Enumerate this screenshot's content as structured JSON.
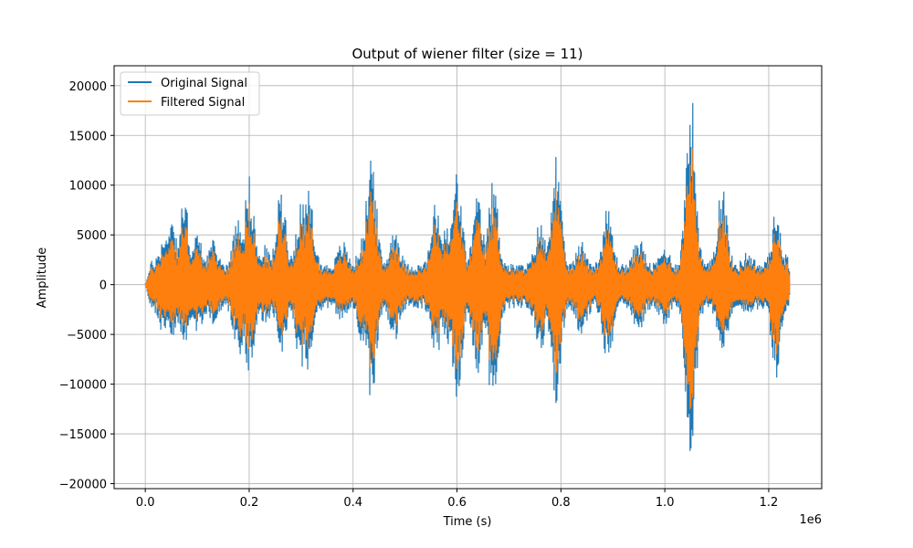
{
  "chart_data": {
    "type": "line",
    "title": "Output of wiener filter (size = 11)",
    "xlabel": "Time (s)",
    "ylabel": "Amplitude",
    "x_offset_label": "1e6",
    "xlim": [
      -60000,
      1302000
    ],
    "ylim": [
      -20500,
      22000
    ],
    "xticks": [
      0,
      200000,
      400000,
      600000,
      800000,
      1000000,
      1200000
    ],
    "xtick_labels": [
      "0.0",
      "0.2",
      "0.4",
      "0.6",
      "0.8",
      "1.0",
      "1.2"
    ],
    "yticks": [
      -20000,
      -15000,
      -10000,
      -5000,
      0,
      5000,
      10000,
      15000,
      20000
    ],
    "ytick_labels": [
      "−20000",
      "−15000",
      "−10000",
      "−5000",
      "0",
      "5000",
      "10000",
      "15000",
      "20000"
    ],
    "grid": true,
    "legend_position": "upper-left",
    "series": [
      {
        "name": "Original Signal",
        "color": "#1f77b4",
        "x_range": [
          0,
          1240000
        ],
        "envelope_peaks": [
          {
            "x": 15000,
            "upper": 2500,
            "lower": -3000
          },
          {
            "x": 35000,
            "upper": 4800,
            "lower": -5200
          },
          {
            "x": 50000,
            "upper": 7500,
            "lower": -5500
          },
          {
            "x": 75000,
            "upper": 8700,
            "lower": -6500
          },
          {
            "x": 100000,
            "upper": 5200,
            "lower": -5000
          },
          {
            "x": 130000,
            "upper": 4500,
            "lower": -4000
          },
          {
            "x": 180000,
            "upper": 7800,
            "lower": -7500
          },
          {
            "x": 200000,
            "upper": 11000,
            "lower": -8800
          },
          {
            "x": 230000,
            "upper": 4000,
            "lower": -4000
          },
          {
            "x": 262000,
            "upper": 10000,
            "lower": -6800
          },
          {
            "x": 300000,
            "upper": 9000,
            "lower": -9000
          },
          {
            "x": 315000,
            "upper": 9500,
            "lower": -10000
          },
          {
            "x": 380000,
            "upper": 4500,
            "lower": -4000
          },
          {
            "x": 420000,
            "upper": 5000,
            "lower": -6500
          },
          {
            "x": 435000,
            "upper": 14000,
            "lower": -12000
          },
          {
            "x": 480000,
            "upper": 6000,
            "lower": -6000
          },
          {
            "x": 560000,
            "upper": 8500,
            "lower": -7500
          },
          {
            "x": 580000,
            "upper": 6000,
            "lower": -6500
          },
          {
            "x": 600000,
            "upper": 11700,
            "lower": -11500
          },
          {
            "x": 640000,
            "upper": 9000,
            "lower": -9000
          },
          {
            "x": 670000,
            "upper": 10800,
            "lower": -13800
          },
          {
            "x": 760000,
            "upper": 6500,
            "lower": -7000
          },
          {
            "x": 790000,
            "upper": 13600,
            "lower": -12300
          },
          {
            "x": 840000,
            "upper": 4500,
            "lower": -5500
          },
          {
            "x": 890000,
            "upper": 7800,
            "lower": -8200
          },
          {
            "x": 950000,
            "upper": 5000,
            "lower": -5000
          },
          {
            "x": 1000000,
            "upper": 4000,
            "lower": -4000
          },
          {
            "x": 1050000,
            "upper": 20000,
            "lower": -18500
          },
          {
            "x": 1110000,
            "upper": 10700,
            "lower": -8300
          },
          {
            "x": 1160000,
            "upper": 3500,
            "lower": -3500
          },
          {
            "x": 1215000,
            "upper": 7700,
            "lower": -9900
          },
          {
            "x": 1240000,
            "upper": 3500,
            "lower": -3200
          }
        ]
      },
      {
        "name": "Filtered Signal",
        "color": "#ff7f0e",
        "x_range": [
          0,
          1240000
        ],
        "relative_amplitude_to_original": 0.75
      }
    ]
  }
}
